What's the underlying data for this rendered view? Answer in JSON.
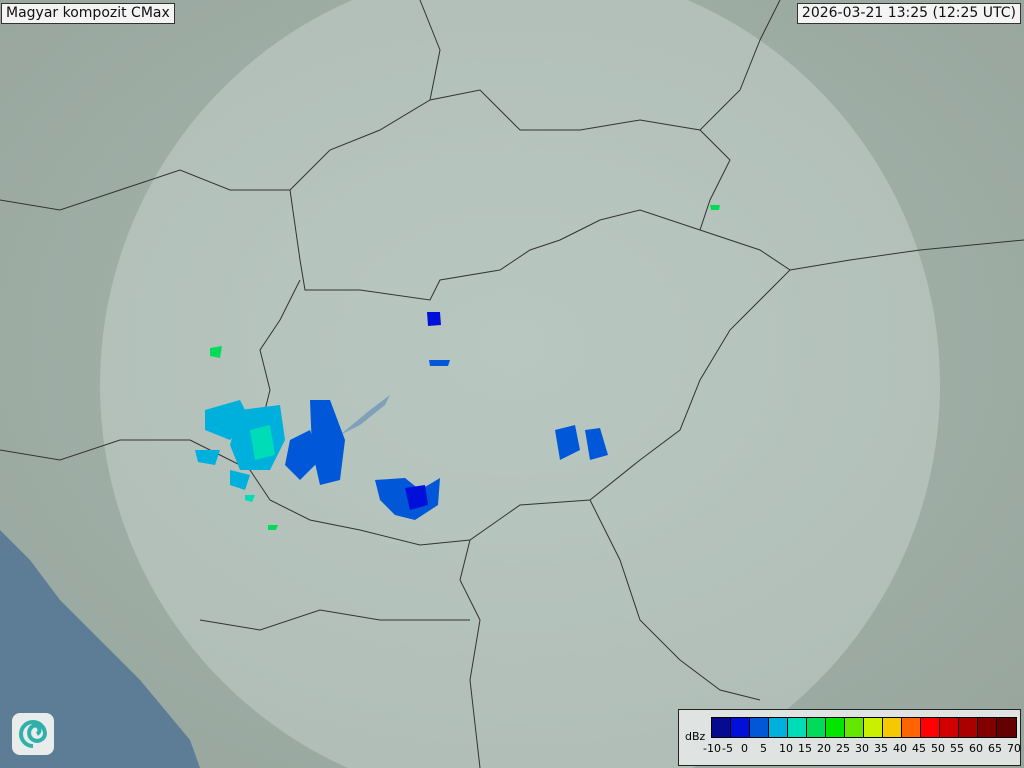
{
  "title": "Magyar kompozit  CMax",
  "timestamp": "2026-03-21 13:25 (12:25 UTC)",
  "logo": "omsz-swirl-logo",
  "legend": {
    "unit": "dBz",
    "ticks": [
      "-10",
      "-5",
      "0",
      "5",
      "10",
      "15",
      "20",
      "25",
      "30",
      "35",
      "40",
      "45",
      "50",
      "55",
      "60",
      "65",
      "70"
    ],
    "colors": [
      "#050a8e",
      "#0010d8",
      "#0058d8",
      "#00b0dc",
      "#00dcb8",
      "#00dc5a",
      "#00e600",
      "#64e600",
      "#c8f000",
      "#f5c800",
      "#ff6400",
      "#ff0000",
      "#d20000",
      "#aa0000",
      "#820000",
      "#640000"
    ]
  },
  "colors": {
    "terrain": "#9fb0a6",
    "coverage": "#c8d6d0",
    "sea": "#5d7c96",
    "border": "#333333"
  }
}
